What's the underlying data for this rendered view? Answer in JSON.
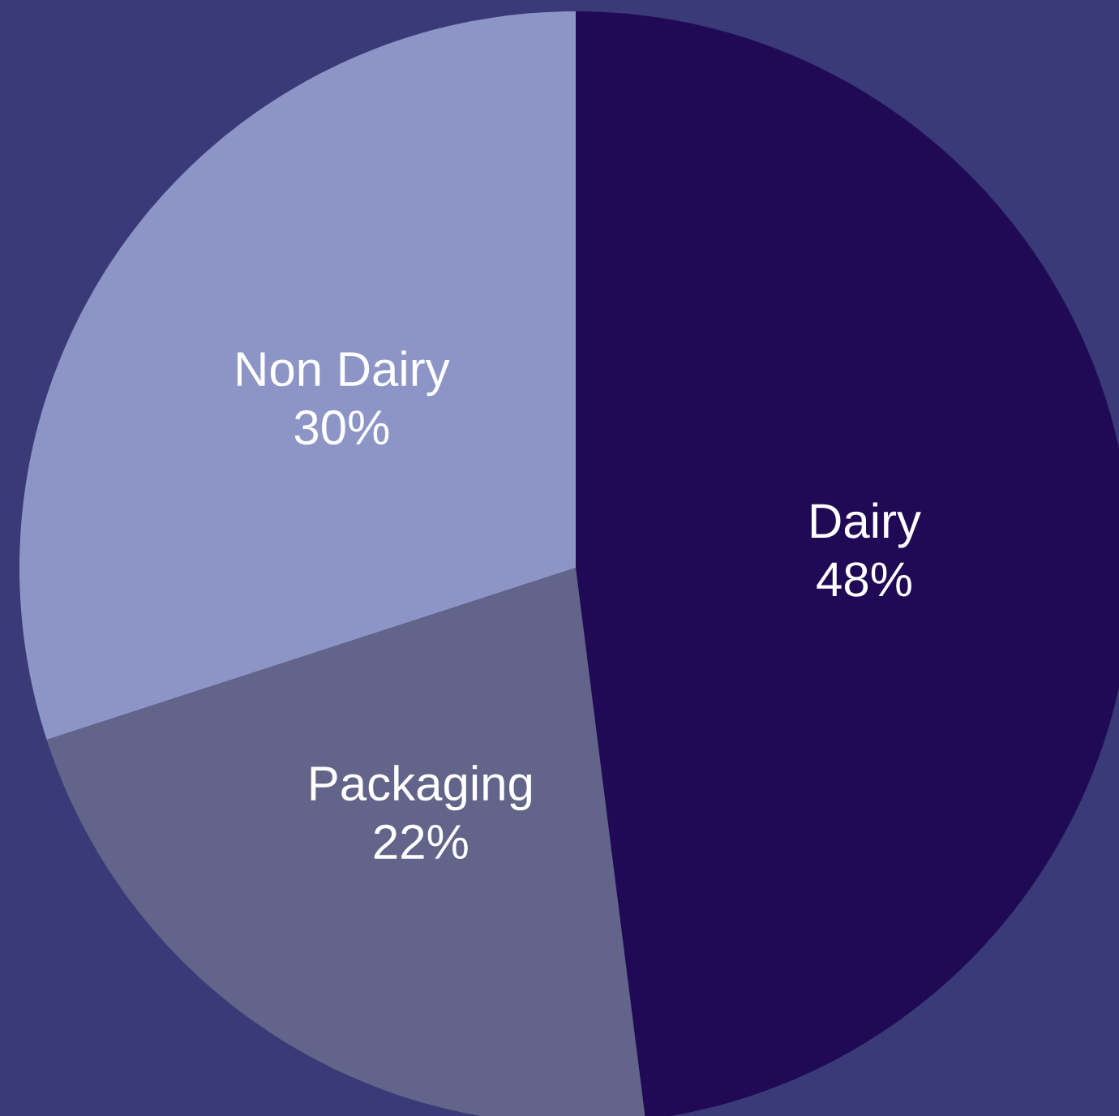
{
  "chart_data": {
    "type": "pie",
    "categories": [
      "Dairy",
      "Packaging",
      "Non Dairy"
    ],
    "values": [
      48,
      22,
      30
    ],
    "colors": [
      "#200a55",
      "#62648a",
      "#8c95c5"
    ],
    "value_labels": [
      "48%",
      "22%",
      "30%"
    ]
  }
}
